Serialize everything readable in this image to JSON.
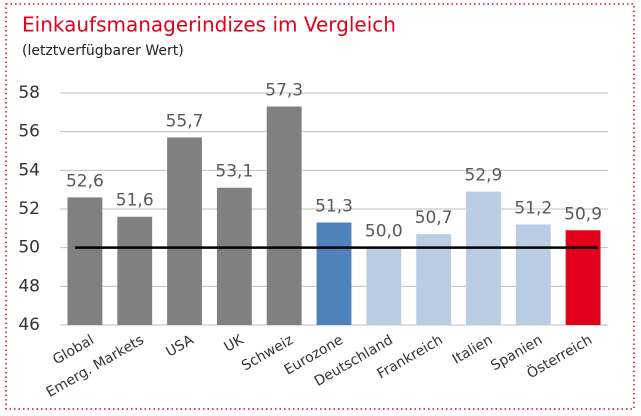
{
  "chart_data": {
    "type": "bar",
    "title": "Einkaufsmanagerindizes im Vergleich",
    "subtitle": "(letztverfügbarer Wert)",
    "categories": [
      "Global",
      "Emerg. Markets",
      "USA",
      "UK",
      "Schweiz",
      "Eurozone",
      "Deutschland",
      "Frankreich",
      "Italien",
      "Spanien",
      "Österreich"
    ],
    "values": [
      52.6,
      51.6,
      55.7,
      53.1,
      57.3,
      51.3,
      50.0,
      50.7,
      52.9,
      51.2,
      50.9
    ],
    "value_labels": [
      "52,6",
      "51,6",
      "55,7",
      "53,1",
      "57,3",
      "51,3",
      "50,0",
      "50,7",
      "52,9",
      "51,2",
      "50,9"
    ],
    "colors": [
      "#808080",
      "#808080",
      "#808080",
      "#808080",
      "#808080",
      "#4f81bd",
      "#b9cde5",
      "#b9cde5",
      "#b9cde5",
      "#b9cde5",
      "#e2001a"
    ],
    "ylim": [
      46,
      58
    ],
    "yticks": [
      46,
      48,
      50,
      52,
      54,
      56,
      58
    ],
    "grid": true,
    "reference_line": 50
  }
}
